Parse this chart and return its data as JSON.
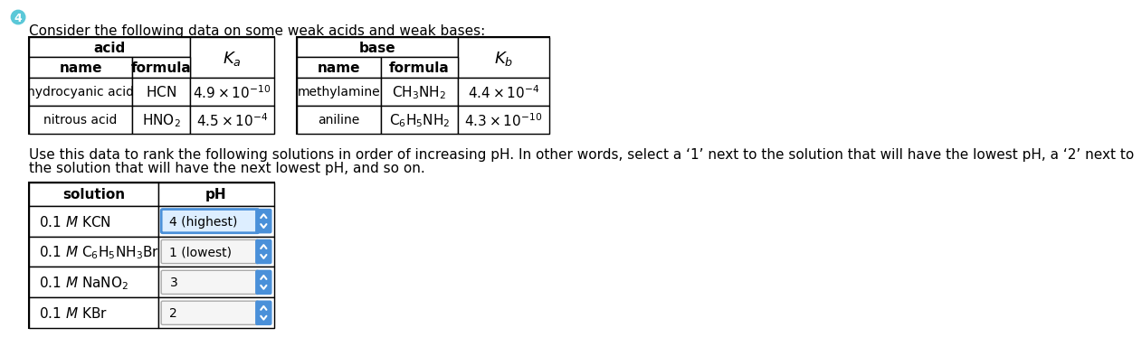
{
  "title": "Consider the following data on some weak acids and weak bases:",
  "background_color": "#ffffff",
  "instruction_line1": "Use this data to rank the following solutions in order of increasing pH. In other words, select a ‘1’ next to the solution that will have the lowest pH, a ‘2’ next to",
  "instruction_line2": "the solution that will have the next lowest pH, and so on.",
  "acid_table": {
    "rows": [
      {
        "name": "hydrocyanic acid",
        "formula_tex": "$\\mathrm{HCN}$",
        "k_tex": "$4.9 \\times 10^{-10}$"
      },
      {
        "name": "nitrous acid",
        "formula_tex": "$\\mathrm{HNO_2}$",
        "k_tex": "$4.5 \\times 10^{-4}$"
      }
    ]
  },
  "base_table": {
    "rows": [
      {
        "name": "methylamine",
        "formula_tex": "$\\mathrm{CH_3NH_2}$",
        "k_tex": "$4.4 \\times 10^{-4}$"
      },
      {
        "name": "aniline",
        "formula_tex": "$\\mathrm{C_6H_5NH_2}$",
        "k_tex": "$4.3 \\times 10^{-10}$"
      }
    ]
  },
  "solution_table": {
    "rows": [
      {
        "sol_tex": "0.1 $M$ KCN",
        "ph_value": "4 (highest)",
        "highlighted": true
      },
      {
        "sol_tex": "0.1 $M$ $\\mathrm{C_6H_5NH_3Br}$",
        "ph_value": "1 (lowest)",
        "highlighted": false
      },
      {
        "sol_tex": "0.1 $M$ $\\mathrm{NaNO_2}$",
        "ph_value": "3",
        "highlighted": false
      },
      {
        "sol_tex": "0.1 $M$ KBr",
        "ph_value": "2",
        "highlighted": false
      }
    ]
  },
  "icon_color": "#5bc8d8",
  "spinner_color": "#4a90d9",
  "highlight_border_color": "#4a90d9",
  "highlight_fill_color": "#ddeeff"
}
